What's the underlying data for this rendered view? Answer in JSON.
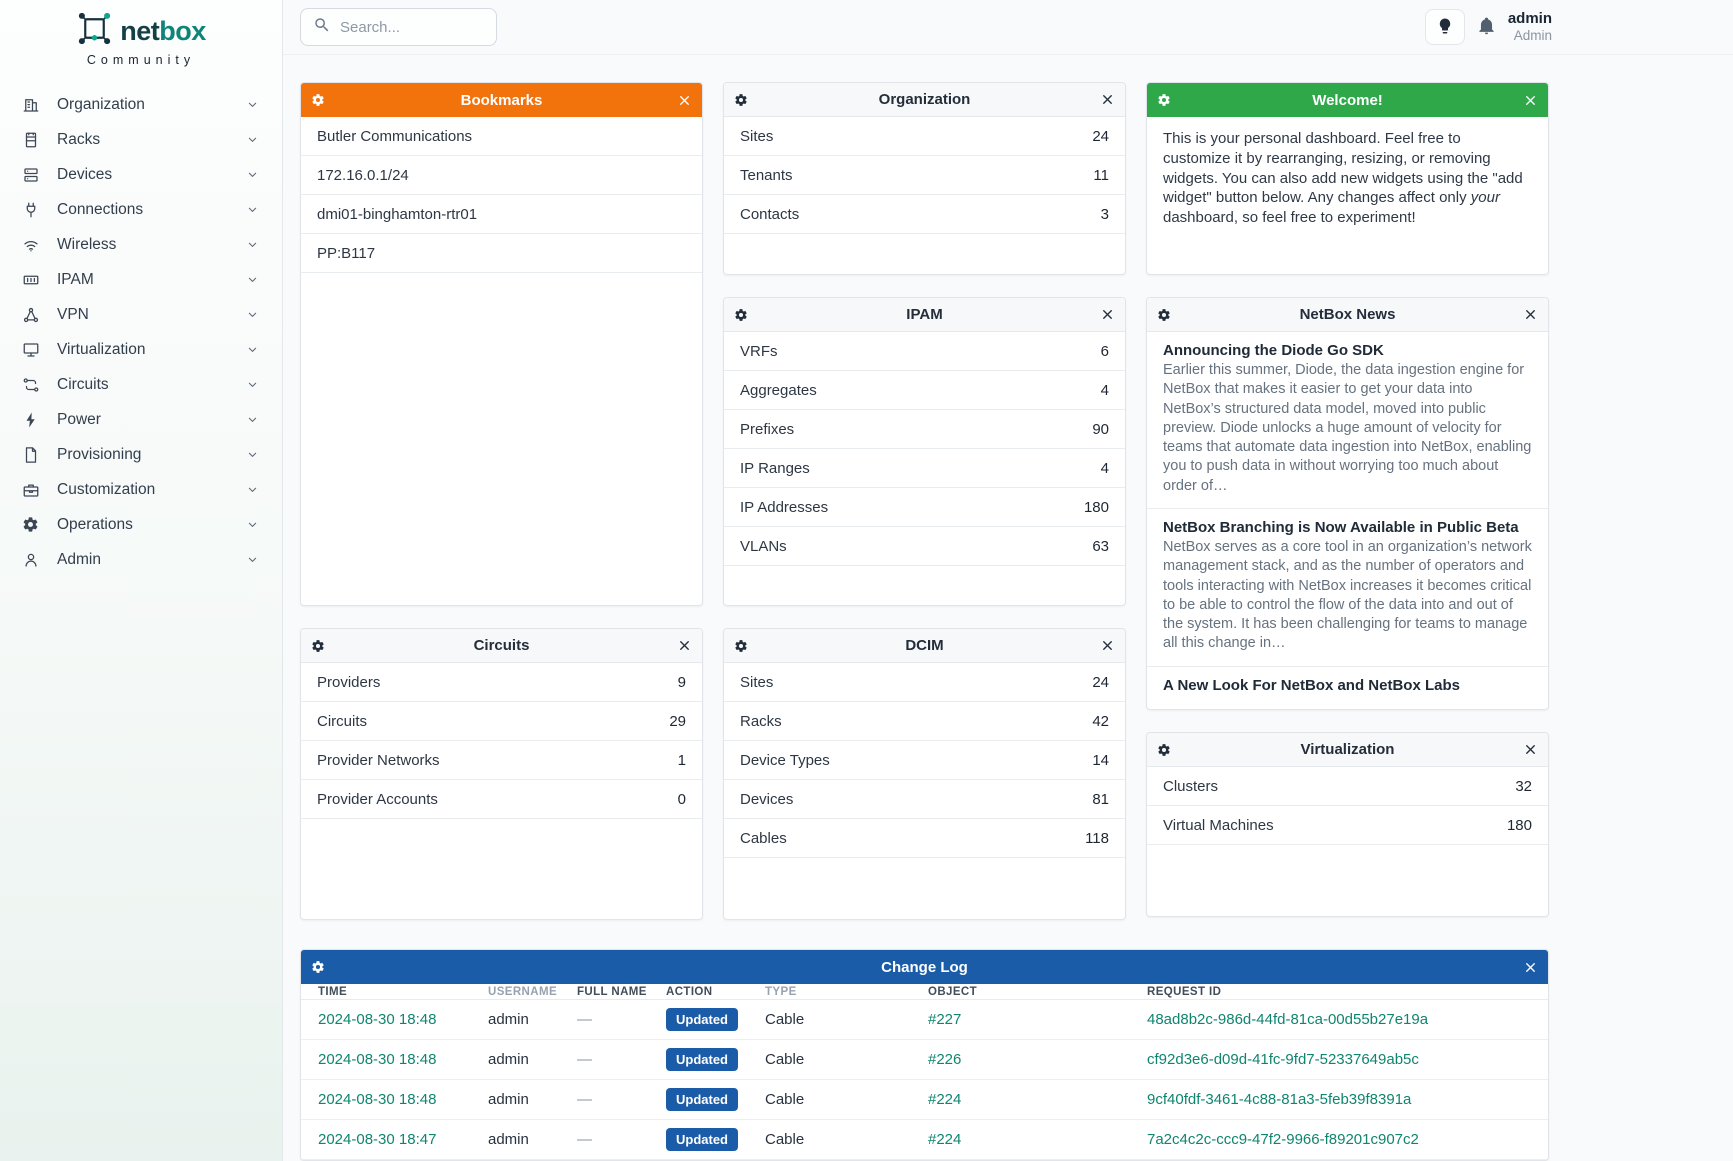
{
  "colors": {
    "orange": "#f2720c",
    "green": "#2fa84a",
    "blue": "#1a5ca8",
    "link": "#0f8570",
    "brand_dark": "#143f46",
    "brand_teal": "#0f8577"
  },
  "brand": {
    "logo_icon": "netbox-logo-icon",
    "primary": "net",
    "secondary": "box",
    "subtitle": "Community"
  },
  "topbar": {
    "search_placeholder": "Search...",
    "search_icon": "search-icon",
    "theme_toggle_icon": "light-bulb-icon",
    "notifications_icon": "bell-icon",
    "user": {
      "username": "admin",
      "role": "Admin"
    }
  },
  "sidebar": {
    "items": [
      {
        "label": "Organization",
        "icon": "building-icon"
      },
      {
        "label": "Racks",
        "icon": "rack-icon"
      },
      {
        "label": "Devices",
        "icon": "server-icon"
      },
      {
        "label": "Connections",
        "icon": "plug-icon"
      },
      {
        "label": "Wireless",
        "icon": "wifi-icon"
      },
      {
        "label": "IPAM",
        "icon": "counter-icon"
      },
      {
        "label": "VPN",
        "icon": "network-nodes-icon"
      },
      {
        "label": "Virtualization",
        "icon": "monitor-icon"
      },
      {
        "label": "Circuits",
        "icon": "transit-icon"
      },
      {
        "label": "Power",
        "icon": "lightning-icon"
      },
      {
        "label": "Provisioning",
        "icon": "document-icon"
      },
      {
        "label": "Customization",
        "icon": "toolbox-icon"
      },
      {
        "label": "Operations",
        "icon": "gears-icon"
      },
      {
        "label": "Admin",
        "icon": "user-icon"
      }
    ]
  },
  "widget_chrome": {
    "settings_icon": "gear-icon",
    "close_icon": "close-icon"
  },
  "widgets": {
    "bookmarks": {
      "title": "Bookmarks",
      "items": [
        "Butler Communications",
        "172.16.0.1/24",
        "dmi01-binghamton-rtr01",
        "PP:B117"
      ]
    },
    "organization": {
      "title": "Organization",
      "rows": [
        {
          "label": "Sites",
          "value": "24"
        },
        {
          "label": "Tenants",
          "value": "11"
        },
        {
          "label": "Contacts",
          "value": "3"
        }
      ]
    },
    "welcome": {
      "title": "Welcome!",
      "body_before": "This is your personal dashboard. Feel free to customize it by rearranging, resizing, or removing widgets. You can also add new widgets using the \"add widget\" button below. Any changes affect only ",
      "body_italic": "your",
      "body_after": " dashboard, so feel free to experiment!"
    },
    "ipam": {
      "title": "IPAM",
      "rows": [
        {
          "label": "VRFs",
          "value": "6"
        },
        {
          "label": "Aggregates",
          "value": "4"
        },
        {
          "label": "Prefixes",
          "value": "90"
        },
        {
          "label": "IP Ranges",
          "value": "4"
        },
        {
          "label": "IP Addresses",
          "value": "180"
        },
        {
          "label": "VLANs",
          "value": "63"
        }
      ]
    },
    "news": {
      "title": "NetBox News",
      "items": [
        {
          "title": "Announcing the Diode Go SDK",
          "excerpt": "Earlier this summer, Diode, the data ingestion engine for NetBox that makes it easier to get your data into NetBox’s structured data model, moved into public preview. Diode unlocks a huge amount of velocity for teams that automate data ingestion into NetBox, enabling you to push data in without worrying too much about order of…"
        },
        {
          "title": "NetBox Branching is Now Available in Public Beta",
          "excerpt": "NetBox serves as a core tool in an organization’s network management stack, and as the number of operators and tools interacting with NetBox increases it becomes critical to be able to control the flow of the data into and out of the system. It has been challenging for teams to manage all this change in…"
        },
        {
          "title": "A New Look For NetBox and NetBox Labs",
          "excerpt": ""
        }
      ]
    },
    "circuits": {
      "title": "Circuits",
      "rows": [
        {
          "label": "Providers",
          "value": "9"
        },
        {
          "label": "Circuits",
          "value": "29"
        },
        {
          "label": "Provider Networks",
          "value": "1"
        },
        {
          "label": "Provider Accounts",
          "value": "0"
        }
      ]
    },
    "dcim": {
      "title": "DCIM",
      "rows": [
        {
          "label": "Sites",
          "value": "24"
        },
        {
          "label": "Racks",
          "value": "42"
        },
        {
          "label": "Device Types",
          "value": "14"
        },
        {
          "label": "Devices",
          "value": "81"
        },
        {
          "label": "Cables",
          "value": "118"
        }
      ]
    },
    "virtualization": {
      "title": "Virtualization",
      "rows": [
        {
          "label": "Clusters",
          "value": "32"
        },
        {
          "label": "Virtual Machines",
          "value": "180"
        }
      ]
    },
    "changelog": {
      "title": "Change Log",
      "columns": [
        "TIME",
        "USERNAME",
        "FULL NAME",
        "ACTION",
        "TYPE",
        "OBJECT",
        "REQUEST ID"
      ],
      "rows": [
        {
          "time": "2024-08-30 18:48",
          "username": "admin",
          "full_name": "—",
          "action": "Updated",
          "type": "Cable",
          "object": "#227",
          "request_id": "48ad8b2c-986d-44fd-81ca-00d55b27e19a"
        },
        {
          "time": "2024-08-30 18:48",
          "username": "admin",
          "full_name": "—",
          "action": "Updated",
          "type": "Cable",
          "object": "#226",
          "request_id": "cf92d3e6-d09d-41fc-9fd7-52337649ab5c"
        },
        {
          "time": "2024-08-30 18:48",
          "username": "admin",
          "full_name": "—",
          "action": "Updated",
          "type": "Cable",
          "object": "#224",
          "request_id": "9cf40fdf-3461-4c88-81a3-5feb39f8391a"
        },
        {
          "time": "2024-08-30 18:47",
          "username": "admin",
          "full_name": "—",
          "action": "Updated",
          "type": "Cable",
          "object": "#224",
          "request_id": "7a2c4c2c-ccc9-47f2-9966-f89201c907c2"
        }
      ]
    }
  }
}
